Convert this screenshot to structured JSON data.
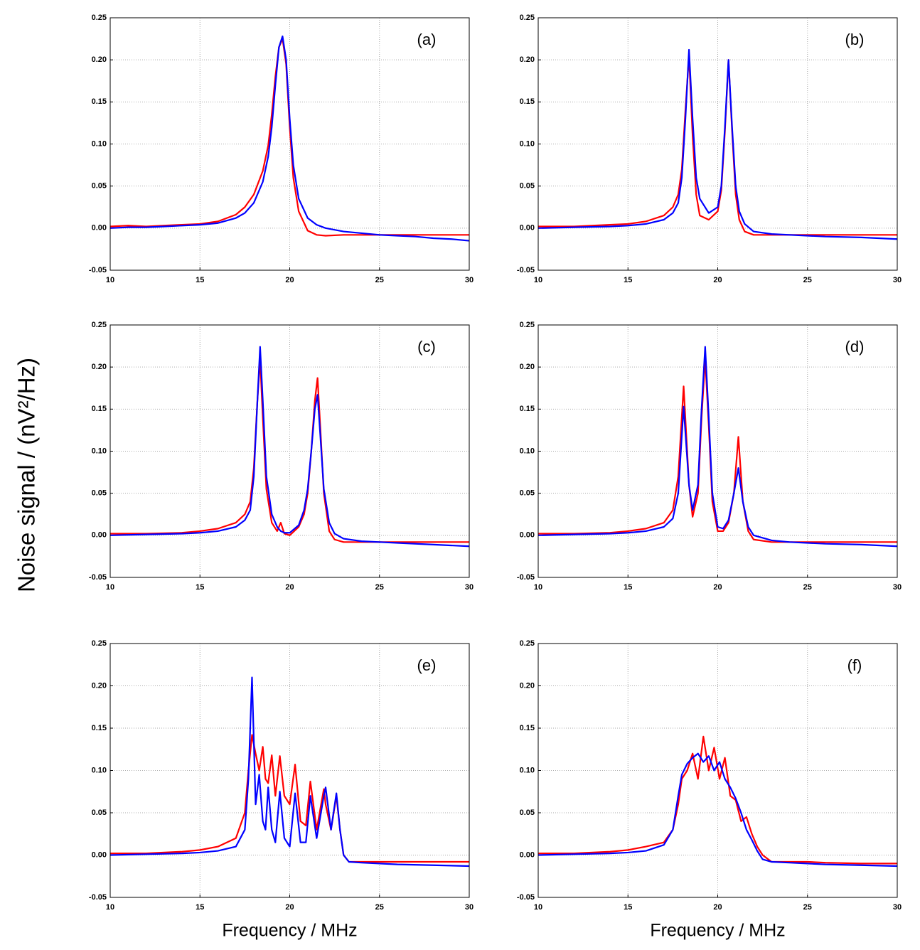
{
  "ylabel": "Noise signal / (nV²/Hz)",
  "chart_data": [
    {
      "type": "line",
      "label": "(a)",
      "grid": true,
      "xlim": [
        10,
        30
      ],
      "ylim": [
        -0.05,
        0.25
      ],
      "xticks": [
        10,
        15,
        20,
        25,
        30
      ],
      "yticks": [
        -0.05,
        {
          "value": 0,
          "label": "0.00"
        },
        0.05,
        {
          "value": 0.1,
          "label": "0.10"
        },
        0.15,
        {
          "value": 0.2,
          "label": "0.20"
        },
        0.25
      ],
      "x": [
        10,
        11,
        12,
        13,
        14,
        15,
        16,
        17,
        17.5,
        18,
        18.5,
        18.8,
        19,
        19.2,
        19.4,
        19.6,
        19.8,
        20,
        20.2,
        20.5,
        21,
        21.5,
        22,
        23,
        24,
        25,
        26,
        27,
        28,
        29,
        30
      ],
      "series": [
        {
          "color": "#ff0000",
          "values": [
            0.002,
            0.003,
            0.002,
            0.003,
            0.004,
            0.005,
            0.008,
            0.016,
            0.025,
            0.04,
            0.068,
            0.098,
            0.135,
            0.18,
            0.215,
            0.225,
            0.195,
            0.12,
            0.06,
            0.02,
            -0.003,
            -0.008,
            -0.009,
            -0.008,
            -0.008,
            -0.008,
            -0.008,
            -0.008,
            -0.008,
            -0.008,
            -0.008
          ]
        },
        {
          "color": "#0000ff",
          "values": [
            0,
            0.001,
            0.001,
            0.002,
            0.003,
            0.004,
            0.006,
            0.012,
            0.018,
            0.03,
            0.055,
            0.085,
            0.12,
            0.17,
            0.215,
            0.228,
            0.2,
            0.13,
            0.075,
            0.035,
            0.012,
            0.004,
            0,
            -0.004,
            -0.006,
            -0.008,
            -0.009,
            -0.01,
            -0.012,
            -0.013,
            -0.015
          ]
        }
      ]
    },
    {
      "type": "line",
      "label": "(b)",
      "grid": true,
      "xlim": [
        10,
        30
      ],
      "ylim": [
        -0.05,
        0.25
      ],
      "xticks": [
        10,
        15,
        20,
        25,
        30
      ],
      "yticks": [
        -0.05,
        {
          "value": 0,
          "label": "0.00"
        },
        0.05,
        {
          "value": 0.1,
          "label": "0.10"
        },
        0.15,
        {
          "value": 0.2,
          "label": "0.20"
        },
        0.25
      ],
      "x": [
        10,
        12,
        14,
        15,
        16,
        17,
        17.5,
        17.8,
        18,
        18.2,
        18.4,
        18.6,
        18.8,
        19,
        19.5,
        20,
        20.2,
        20.4,
        20.6,
        20.8,
        21,
        21.2,
        21.5,
        22,
        23,
        24,
        25,
        26,
        28,
        30
      ],
      "series": [
        {
          "color": "#ff0000",
          "values": [
            0.002,
            0.002,
            0.004,
            0.005,
            0.008,
            0.015,
            0.025,
            0.04,
            0.07,
            0.14,
            0.205,
            0.11,
            0.04,
            0.015,
            0.01,
            0.02,
            0.045,
            0.115,
            0.2,
            0.115,
            0.04,
            0.01,
            -0.004,
            -0.008,
            -0.008,
            -0.008,
            -0.008,
            -0.008,
            -0.008,
            -0.008
          ]
        },
        {
          "color": "#0000ff",
          "values": [
            0,
            0.001,
            0.002,
            0.003,
            0.005,
            0.01,
            0.018,
            0.03,
            0.06,
            0.13,
            0.212,
            0.13,
            0.06,
            0.035,
            0.018,
            0.025,
            0.05,
            0.12,
            0.2,
            0.12,
            0.05,
            0.02,
            0.005,
            -0.004,
            -0.007,
            -0.008,
            -0.009,
            -0.01,
            -0.011,
            -0.013
          ]
        }
      ]
    },
    {
      "type": "line",
      "label": "(c)",
      "grid": true,
      "xlim": [
        10,
        30
      ],
      "ylim": [
        -0.05,
        0.25
      ],
      "xticks": [
        10,
        15,
        20,
        25,
        30
      ],
      "yticks": [
        -0.05,
        {
          "value": 0,
          "label": "0.00"
        },
        0.05,
        {
          "value": 0.1,
          "label": "0.10"
        },
        0.15,
        {
          "value": 0.2,
          "label": "0.20"
        },
        0.25
      ],
      "x": [
        10,
        12,
        14,
        15,
        16,
        17,
        17.5,
        17.8,
        18,
        18.2,
        18.35,
        18.5,
        18.7,
        19,
        19.3,
        19.5,
        19.7,
        20,
        20.5,
        20.8,
        21,
        21.2,
        21.4,
        21.55,
        21.7,
        21.9,
        22.2,
        22.5,
        23,
        24,
        25,
        26,
        28,
        30
      ],
      "series": [
        {
          "color": "#ff0000",
          "values": [
            0.002,
            0.002,
            0.003,
            0.005,
            0.008,
            0.015,
            0.025,
            0.04,
            0.08,
            0.16,
            0.21,
            0.14,
            0.055,
            0.015,
            0.005,
            0.015,
            0.002,
            0,
            0.01,
            0.025,
            0.05,
            0.1,
            0.16,
            0.187,
            0.13,
            0.05,
            0.005,
            -0.005,
            -0.008,
            -0.008,
            -0.008,
            -0.008,
            -0.008,
            -0.008
          ]
        },
        {
          "color": "#0000ff",
          "values": [
            0,
            0.001,
            0.002,
            0.003,
            0.005,
            0.01,
            0.018,
            0.03,
            0.07,
            0.16,
            0.224,
            0.16,
            0.07,
            0.025,
            0.01,
            0.005,
            0.003,
            0.003,
            0.012,
            0.03,
            0.055,
            0.1,
            0.15,
            0.167,
            0.12,
            0.055,
            0.015,
            0.002,
            -0.004,
            -0.007,
            -0.008,
            -0.009,
            -0.011,
            -0.013
          ]
        }
      ]
    },
    {
      "type": "line",
      "label": "(d)",
      "grid": true,
      "xlim": [
        10,
        30
      ],
      "ylim": [
        -0.05,
        0.25
      ],
      "xticks": [
        10,
        15,
        20,
        25,
        30
      ],
      "yticks": [
        -0.05,
        {
          "value": 0,
          "label": "0.00"
        },
        0.05,
        {
          "value": 0.1,
          "label": "0.10"
        },
        0.15,
        {
          "value": 0.2,
          "label": "0.20"
        },
        0.25
      ],
      "x": [
        10,
        12,
        14,
        15,
        16,
        17,
        17.5,
        17.8,
        18.1,
        18.4,
        18.6,
        18.9,
        19.1,
        19.3,
        19.5,
        19.7,
        20,
        20.3,
        20.6,
        20.9,
        21.15,
        21.4,
        21.7,
        22,
        23,
        24,
        25,
        26,
        28,
        30
      ],
      "series": [
        {
          "color": "#ff0000",
          "values": [
            0.002,
            0.002,
            0.003,
            0.005,
            0.008,
            0.015,
            0.03,
            0.07,
            0.177,
            0.06,
            0.022,
            0.05,
            0.14,
            0.21,
            0.13,
            0.04,
            0.005,
            0.005,
            0.015,
            0.05,
            0.117,
            0.04,
            0.005,
            -0.005,
            -0.008,
            -0.008,
            -0.008,
            -0.008,
            -0.008,
            -0.008
          ]
        },
        {
          "color": "#0000ff",
          "values": [
            0,
            0.001,
            0.002,
            0.003,
            0.005,
            0.01,
            0.02,
            0.05,
            0.153,
            0.06,
            0.03,
            0.06,
            0.15,
            0.224,
            0.14,
            0.05,
            0.01,
            0.008,
            0.018,
            0.05,
            0.08,
            0.04,
            0.01,
            0,
            -0.006,
            -0.008,
            -0.009,
            -0.01,
            -0.011,
            -0.013
          ]
        }
      ]
    },
    {
      "type": "line",
      "label": "(e)",
      "grid": true,
      "xlabel": "Frequency / MHz",
      "xlim": [
        10,
        30
      ],
      "ylim": [
        -0.05,
        0.25
      ],
      "xticks": [
        10,
        15,
        20,
        25,
        30
      ],
      "yticks": [
        -0.05,
        {
          "value": 0,
          "label": "0.00"
        },
        0.05,
        {
          "value": 0.1,
          "label": "0.10"
        },
        0.15,
        {
          "value": 0.2,
          "label": "0.20"
        },
        0.25
      ],
      "x": [
        10,
        12,
        14,
        15,
        16,
        17,
        17.5,
        17.7,
        17.9,
        18.1,
        18.3,
        18.5,
        18.65,
        18.8,
        19,
        19.2,
        19.45,
        19.7,
        20,
        20.3,
        20.6,
        20.9,
        21.15,
        21.5,
        21.9,
        22,
        22.3,
        22.6,
        22.8,
        23,
        23.3,
        24,
        25,
        26,
        28,
        30
      ],
      "series": [
        {
          "color": "#ff0000",
          "values": [
            0.002,
            0.002,
            0.004,
            0.006,
            0.01,
            0.02,
            0.05,
            0.1,
            0.142,
            0.12,
            0.1,
            0.128,
            0.09,
            0.085,
            0.118,
            0.07,
            0.117,
            0.07,
            0.06,
            0.107,
            0.04,
            0.035,
            0.087,
            0.03,
            0.078,
            0.06,
            0.03,
            0.07,
            0.03,
            0,
            -0.008,
            -0.008,
            -0.008,
            -0.008,
            -0.008,
            -0.008
          ]
        },
        {
          "color": "#0000ff",
          "values": [
            0,
            0.001,
            0.002,
            0.003,
            0.005,
            0.01,
            0.03,
            0.09,
            0.21,
            0.06,
            0.095,
            0.04,
            0.03,
            0.08,
            0.03,
            0.015,
            0.075,
            0.02,
            0.01,
            0.073,
            0.015,
            0.015,
            0.07,
            0.02,
            0.07,
            0.08,
            0.03,
            0.073,
            0.03,
            0,
            -0.008,
            -0.009,
            -0.01,
            -0.011,
            -0.012,
            -0.013
          ]
        }
      ]
    },
    {
      "type": "line",
      "label": "(f)",
      "grid": true,
      "xlabel": "Frequency / MHz",
      "xlim": [
        10,
        30
      ],
      "ylim": [
        -0.05,
        0.25
      ],
      "xticks": [
        10,
        15,
        20,
        25,
        30
      ],
      "yticks": [
        -0.05,
        {
          "value": 0,
          "label": "0.00"
        },
        0.05,
        {
          "value": 0.1,
          "label": "0.10"
        },
        0.15,
        {
          "value": 0.2,
          "label": "0.20"
        },
        0.25
      ],
      "x": [
        10,
        12,
        14,
        15,
        16,
        17,
        17.5,
        17.8,
        18,
        18.3,
        18.6,
        18.9,
        19.2,
        19.5,
        19.8,
        20.1,
        20.4,
        20.7,
        21,
        21.3,
        21.6,
        21.9,
        22.2,
        22.5,
        23,
        24,
        25,
        26,
        28,
        30
      ],
      "series": [
        {
          "color": "#ff0000",
          "values": [
            0.002,
            0.002,
            0.004,
            0.006,
            0.01,
            0.015,
            0.03,
            0.06,
            0.09,
            0.1,
            0.12,
            0.09,
            0.14,
            0.1,
            0.127,
            0.09,
            0.115,
            0.07,
            0.065,
            0.04,
            0.045,
            0.025,
            0.01,
            0,
            -0.008,
            -0.008,
            -0.008,
            -0.009,
            -0.01,
            -0.01
          ]
        },
        {
          "color": "#0000ff",
          "values": [
            0,
            0.001,
            0.002,
            0.003,
            0.005,
            0.012,
            0.03,
            0.07,
            0.095,
            0.108,
            0.115,
            0.12,
            0.11,
            0.117,
            0.1,
            0.11,
            0.09,
            0.08,
            0.067,
            0.05,
            0.03,
            0.018,
            0.005,
            -0.005,
            -0.008,
            -0.009,
            -0.01,
            -0.011,
            -0.012,
            -0.013
          ]
        }
      ]
    }
  ]
}
